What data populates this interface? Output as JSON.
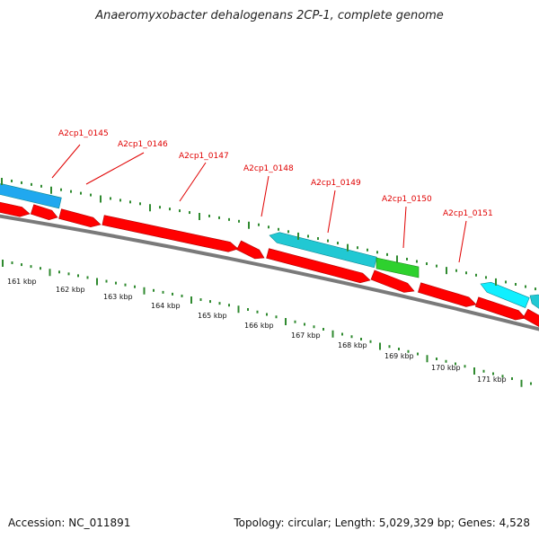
{
  "title": "Anaeromyxobacter dehalogenans 2CP-1, complete genome",
  "footer": {
    "accession": "Accession: NC_011891",
    "summary": "Topology: circular; Length: 5,029,329 bp; Genes: 4,528"
  },
  "colors": {
    "background": "#ffffff",
    "backbone": "#7a7a7a",
    "tick": "#2f8a2f",
    "forward_gene": "#ff0000",
    "reverse_gene_dark": "#21c8d3",
    "reverse_gene_light": "#10efff",
    "reverse_gene_blue": "#20a8ef",
    "green_gene": "#2ed12e",
    "callout": "#e00000",
    "label": "#111111"
  },
  "ruler_labels": [
    "161 kbp",
    "162 kbp",
    "163 kbp",
    "164 kbp",
    "165 kbp",
    "166 kbp",
    "167 kbp",
    "168 kbp",
    "169 kbp",
    "170 kbp",
    "171 kbp"
  ],
  "gene_labels": [
    "A2cp1_0145",
    "A2cp1_0146",
    "A2cp1_0147",
    "A2cp1_0148",
    "A2cp1_0149",
    "A2cp1_0150",
    "A2cp1_0151"
  ],
  "visible_window_kbp": [
    160.3,
    171.7
  ]
}
